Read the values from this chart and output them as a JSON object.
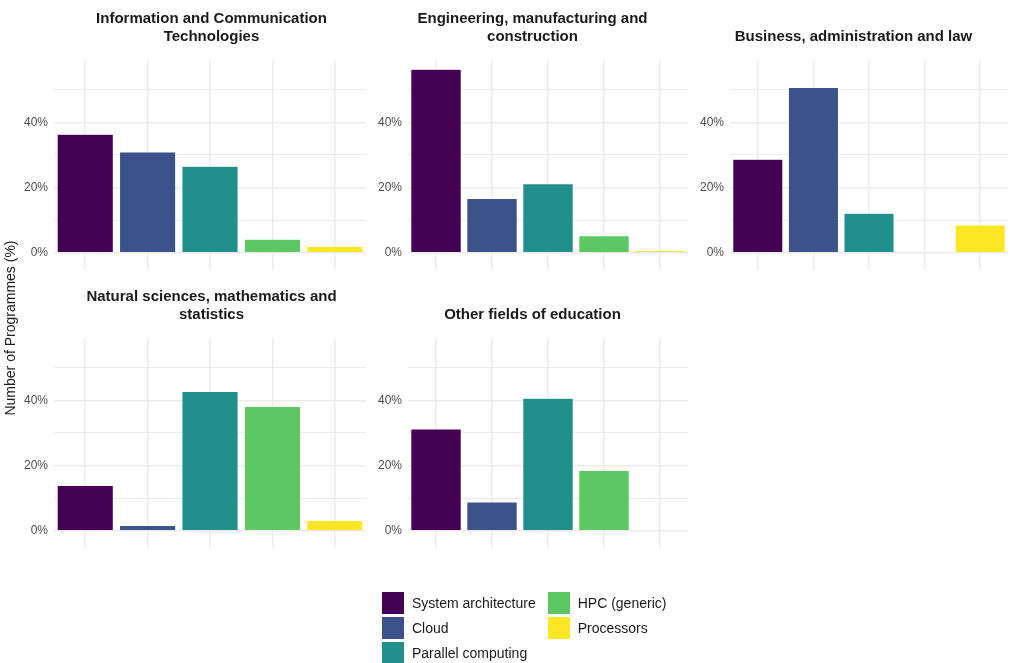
{
  "chart_data": [
    {
      "type": "bar",
      "title": "Information and Communication Technologies",
      "ylabel": "Number of Programmes (%)",
      "categories": [
        null,
        null,
        null,
        null,
        null
      ],
      "tick_labels": "y",
      "grid": true,
      "legend": "bottom",
      "ylim": [
        -2.8,
        59.1
      ],
      "yticks": [
        {
          "value": 0,
          "label": "0%"
        },
        {
          "value": 10,
          "label": null
        },
        {
          "value": 20,
          "label": "20%"
        },
        {
          "value": 30,
          "label": null
        },
        {
          "value": 40,
          "label": "40%"
        },
        {
          "value": 50,
          "label": null
        }
      ],
      "series": [
        {
          "name": "System architecture",
          "color": "#440154",
          "values": [
            36.4,
            null,
            null,
            null,
            null
          ]
        },
        {
          "name": "Cloud",
          "color": "#3b528b",
          "values": [
            null,
            30.9,
            null,
            null,
            null
          ]
        },
        {
          "name": "Parallel computing",
          "color": "#21908c",
          "values": [
            null,
            null,
            26.5,
            null,
            null
          ]
        },
        {
          "name": "HPC (generic)",
          "color": "#5dc863",
          "values": [
            null,
            null,
            null,
            4.1,
            null
          ]
        },
        {
          "name": "Processors",
          "color": "#fde725",
          "values": [
            null,
            null,
            null,
            null,
            1.9
          ]
        }
      ]
    },
    {
      "type": "bar",
      "title": "Engineering, manufacturing and construction",
      "categories": [
        null,
        null,
        null,
        null,
        null
      ],
      "tick_labels": "y",
      "grid": true,
      "ylim": [
        -2.8,
        59.1
      ],
      "yticks": [
        {
          "value": 0,
          "label": "0%"
        },
        {
          "value": 10,
          "label": null
        },
        {
          "value": 20,
          "label": "20%"
        },
        {
          "value": 30,
          "label": null
        },
        {
          "value": 40,
          "label": "40%"
        },
        {
          "value": 50,
          "label": null
        }
      ],
      "values": [
        56.3,
        16.6,
        21.2,
        5.2,
        0.7
      ],
      "colors": [
        "#440154",
        "#3b528b",
        "#21908c",
        "#5dc863",
        "#fde725"
      ]
    },
    {
      "type": "bar",
      "title": "Business, administration and law",
      "categories": [
        null,
        null,
        null,
        null,
        null
      ],
      "tick_labels": "y",
      "grid": true,
      "ylim": [
        -2.8,
        59.1
      ],
      "yticks": [
        {
          "value": 0,
          "label": "0%"
        },
        {
          "value": 10,
          "label": null
        },
        {
          "value": 20,
          "label": "20%"
        },
        {
          "value": 30,
          "label": null
        },
        {
          "value": 40,
          "label": "40%"
        },
        {
          "value": 50,
          "label": null
        }
      ],
      "values": [
        28.7,
        50.7,
        12.1,
        0,
        8.5
      ],
      "colors": [
        "#440154",
        "#3b528b",
        "#21908c",
        "#5dc863",
        "#fde725"
      ]
    },
    {
      "type": "bar",
      "title": "Natural sciences, mathematics and statistics",
      "categories": [
        null,
        null,
        null,
        null,
        null
      ],
      "tick_labels": "y",
      "grid": true,
      "ylim": [
        -2.8,
        59.1
      ],
      "yticks": [
        {
          "value": 0,
          "label": "0%"
        },
        {
          "value": 10,
          "label": null
        },
        {
          "value": 20,
          "label": "20%"
        },
        {
          "value": 30,
          "label": null
        },
        {
          "value": 40,
          "label": "40%"
        },
        {
          "value": 50,
          "label": null
        }
      ],
      "values": [
        13.9,
        1.6,
        42.7,
        38.1,
        3.1
      ],
      "colors": [
        "#440154",
        "#3b528b",
        "#21908c",
        "#5dc863",
        "#fde725"
      ]
    },
    {
      "type": "bar",
      "title": "Other fields of education",
      "categories": [
        null,
        null,
        null,
        null,
        null
      ],
      "tick_labels": "y",
      "grid": true,
      "ylim": [
        -2.8,
        59.1
      ],
      "yticks": [
        {
          "value": 0,
          "label": "0%"
        },
        {
          "value": 10,
          "label": null
        },
        {
          "value": 20,
          "label": "20%"
        },
        {
          "value": 30,
          "label": null
        },
        {
          "value": 40,
          "label": "40%"
        },
        {
          "value": 50,
          "label": null
        }
      ],
      "values": [
        31.2,
        8.8,
        40.7,
        18.5,
        0
      ],
      "colors": [
        "#440154",
        "#3b528b",
        "#21908c",
        "#5dc863",
        "#fde725"
      ]
    }
  ]
}
